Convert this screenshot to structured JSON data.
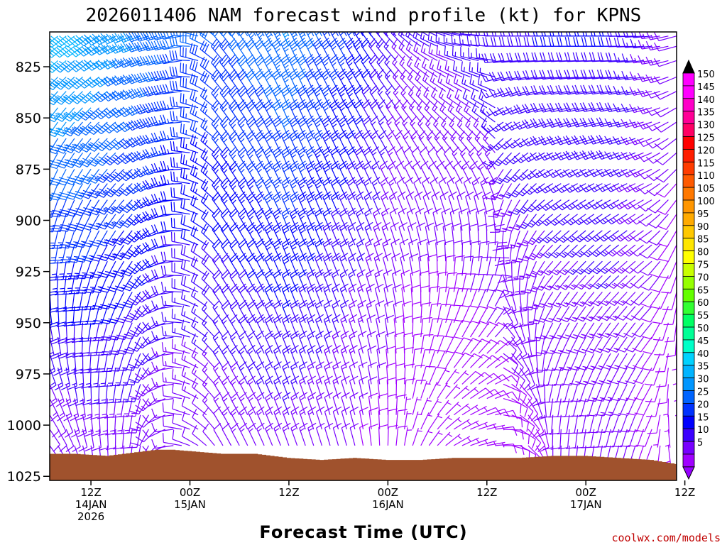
{
  "chart_data": {
    "type": "wind-barb-time-height",
    "title": "2026011406 NAM forecast wind profile (kt) for KPNS",
    "xlabel": "Forecast Time (UTC)",
    "ylabel": "",
    "credit": "coolwx.com/models",
    "y_axis": {
      "range_hpa": [
        808,
        1027
      ],
      "inverted": true,
      "ticks": [
        825,
        850,
        875,
        900,
        925,
        950,
        975,
        1000,
        1025
      ],
      "tick_labels": [
        "825",
        "850",
        "875",
        "900",
        "925",
        "950",
        "975",
        "1000",
        "1025"
      ]
    },
    "x_axis": {
      "range_hours_from_init": [
        1,
        77
      ],
      "ticks": [
        {
          "hour": 6,
          "lines": [
            "12Z",
            "14JAN",
            "2026"
          ]
        },
        {
          "hour": 18,
          "lines": [
            "00Z",
            "15JAN"
          ]
        },
        {
          "hour": 30,
          "lines": [
            "12Z"
          ]
        },
        {
          "hour": 42,
          "lines": [
            "00Z",
            "16JAN"
          ]
        },
        {
          "hour": 54,
          "lines": [
            "12Z"
          ]
        },
        {
          "hour": 66,
          "lines": [
            "00Z",
            "17JAN"
          ]
        },
        {
          "hour": 78,
          "lines": [
            "12Z"
          ]
        }
      ]
    },
    "colorbar": {
      "label_levels": [
        "5",
        "10",
        "15",
        "20",
        "25",
        "30",
        "35",
        "40",
        "45",
        "50",
        "55",
        "60",
        "65",
        "70",
        "75",
        "80",
        "85",
        "90",
        "95",
        "100",
        "105",
        "110",
        "115",
        "120",
        "125",
        "130",
        "135",
        "140",
        "145",
        "150"
      ],
      "colors": [
        "#a000ff",
        "#7800ff",
        "#3c00ff",
        "#0000ff",
        "#0032ff",
        "#0064ff",
        "#0096ff",
        "#00b4ff",
        "#00d2ff",
        "#00ffc8",
        "#00ff96",
        "#00ff64",
        "#32ff32",
        "#64ff00",
        "#96ff00",
        "#c8ff00",
        "#ffff00",
        "#ffe600",
        "#ffc800",
        "#ffaa00",
        "#ff9600",
        "#ff7800",
        "#ff5a00",
        "#ff3c00",
        "#ff1e00",
        "#ff0000",
        "#ff0064",
        "#ff0096",
        "#ff00c8",
        "#ff00ff",
        "#ff00ff"
      ],
      "min_triangle_color": "#9600ff",
      "max_triangle_color": "#000000"
    },
    "barbs": {
      "hour_step": 1,
      "pressure_levels_hpa": [
        810,
        815,
        822,
        830,
        837,
        845,
        852,
        860,
        867,
        875,
        882,
        890,
        897,
        905,
        912,
        920,
        927,
        935,
        942,
        950,
        957,
        965,
        972,
        980,
        987,
        995,
        1002,
        1010
      ],
      "keyframes": [
        {
          "hour": 1,
          "low_dir": 145,
          "low_spd": 10,
          "high_dir": 230,
          "high_spd": 42
        },
        {
          "hour": 6,
          "low_dir": 170,
          "low_spd": 12,
          "high_dir": 235,
          "high_spd": 40
        },
        {
          "hour": 12,
          "low_dir": 190,
          "low_spd": 12,
          "high_dir": 250,
          "high_spd": 35
        },
        {
          "hour": 17,
          "low_dir": 280,
          "low_spd": 10,
          "high_dir": 260,
          "high_spd": 30
        },
        {
          "hour": 22,
          "low_dir": 330,
          "low_spd": 12,
          "high_dir": 320,
          "high_spd": 30
        },
        {
          "hour": 30,
          "low_dir": 340,
          "low_spd": 14,
          "high_dir": 335,
          "high_spd": 35
        },
        {
          "hour": 38,
          "low_dir": 345,
          "low_spd": 10,
          "high_dir": 330,
          "high_spd": 25
        },
        {
          "hour": 44,
          "low_dir": 10,
          "low_spd": 7,
          "high_dir": 315,
          "high_spd": 15
        },
        {
          "hour": 50,
          "low_dir": 60,
          "low_spd": 6,
          "high_dir": 285,
          "high_spd": 15
        },
        {
          "hour": 56,
          "low_dir": 90,
          "low_spd": 8,
          "high_dir": 270,
          "high_spd": 18
        },
        {
          "hour": 62,
          "low_dir": 180,
          "low_spd": 10,
          "high_dir": 270,
          "high_spd": 20
        },
        {
          "hour": 70,
          "low_dir": 195,
          "low_spd": 12,
          "high_dir": 270,
          "high_spd": 20
        },
        {
          "hour": 74,
          "low_dir": 200,
          "low_spd": 8,
          "high_dir": 265,
          "high_spd": 15
        },
        {
          "hour": 77,
          "low_dir": 160,
          "low_spd": 6,
          "high_dir": 255,
          "high_spd": 12
        }
      ]
    },
    "surface_pressure": {
      "hours": [
        1,
        4,
        8,
        12,
        14,
        16,
        19,
        22,
        26,
        30,
        34,
        38,
        42,
        46,
        50,
        54,
        58,
        62,
        66,
        70,
        74,
        77
      ],
      "pressure_hpa": [
        1014,
        1014,
        1015,
        1013,
        1012,
        1012,
        1013,
        1014,
        1014,
        1016,
        1017,
        1016,
        1017,
        1017,
        1016,
        1016,
        1016,
        1015,
        1015,
        1016,
        1017,
        1019
      ],
      "color": "#a0522d"
    }
  }
}
